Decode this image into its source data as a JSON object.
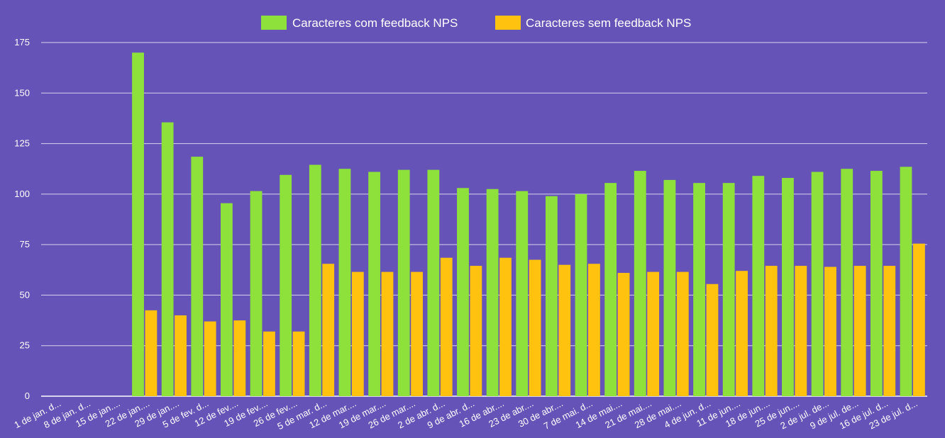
{
  "chart_data": {
    "type": "bar",
    "title": "",
    "xlabel": "",
    "ylabel": "",
    "ylim": [
      0,
      175
    ],
    "yticks": [
      0,
      25,
      50,
      75,
      100,
      125,
      150,
      175
    ],
    "grid": true,
    "legend_position": "top-center",
    "categories": [
      "1 de jan. d...",
      "8 de jan. d...",
      "15 de jan....",
      "22 de jan....",
      "29 de jan....",
      "5 de fev. d...",
      "12 de fev....",
      "19 de fev....",
      "26 de fev....",
      "5 de mar. d...",
      "12 de mar....",
      "19 de mar....",
      "26 de mar....",
      "2 de abr. d...",
      "9 de abr. d...",
      "16 de abr....",
      "23 de abr....",
      "30 de abr....",
      "7 de mai. d...",
      "14 de mai....",
      "21 de mai....",
      "28 de mai....",
      "4 de jun. d...",
      "11 de jun....",
      "18 de jun....",
      "25 de jun....",
      "2 de jul. de...",
      "9 de jul. de...",
      "16 de jul. d...",
      "23 de jul. d..."
    ],
    "series": [
      {
        "name": "Caracteres com feedback NPS",
        "color": "#8ee03a",
        "values": [
          null,
          null,
          null,
          170,
          135.5,
          118.5,
          95.5,
          101.5,
          109.5,
          114.5,
          112.5,
          111,
          112,
          112,
          103,
          102.5,
          101.5,
          99,
          100,
          105.5,
          111.5,
          107,
          105.5,
          105.5,
          109,
          108,
          111,
          112.5,
          111.5,
          113.5
        ]
      },
      {
        "name": "Caracteres sem feedback NPS",
        "color": "#ffc20e",
        "values": [
          null,
          null,
          null,
          42.5,
          40,
          37,
          37.5,
          32,
          32,
          65.5,
          61.5,
          61.5,
          61.5,
          68.5,
          64.5,
          68.5,
          67.5,
          65,
          65.5,
          61,
          61.5,
          61.5,
          55.5,
          62,
          64.5,
          64.5,
          64,
          64.5,
          64.5,
          75.5
        ]
      }
    ]
  }
}
